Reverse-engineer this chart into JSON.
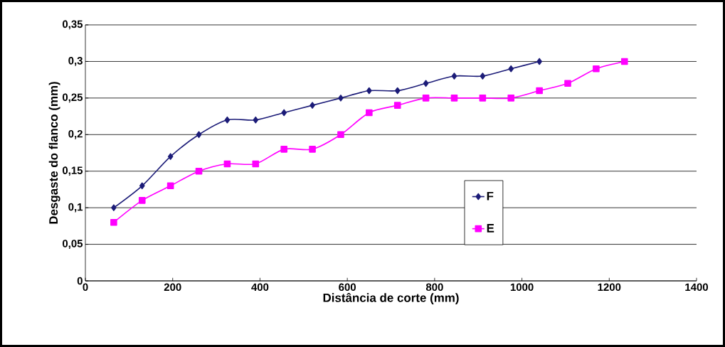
{
  "chart_data": {
    "type": "line",
    "xlabel": "Distância de corte (mm)",
    "ylabel": "Desgaste do flanco (mm)",
    "xlim": [
      0,
      1400
    ],
    "xticks": [
      0,
      200,
      400,
      600,
      800,
      1000,
      1200,
      1400
    ],
    "ylim": [
      0,
      0.35
    ],
    "yticks": [
      0,
      {
        "value": 0.05,
        "label": "0,05"
      },
      {
        "value": 0.1,
        "label": "0,1"
      },
      {
        "value": 0.15,
        "label": "0,15"
      },
      {
        "value": 0.2,
        "label": "0,2"
      },
      {
        "value": 0.25,
        "label": "0,25"
      },
      {
        "value": 0.3,
        "label": "0,3"
      },
      {
        "value": 0.35,
        "label": "0,35"
      }
    ],
    "grid": "y",
    "legend": "right",
    "series": [
      {
        "name": "F",
        "color": "#1c1c78",
        "marker": "diamond",
        "x": [
          65,
          130,
          195,
          260,
          325,
          390,
          455,
          520,
          585,
          650,
          715,
          780,
          845,
          910,
          975,
          1040
        ],
        "values": [
          0.1,
          0.13,
          0.17,
          0.2,
          0.22,
          0.22,
          0.23,
          0.24,
          0.25,
          0.26,
          0.26,
          0.27,
          0.28,
          0.28,
          0.29,
          0.3
        ]
      },
      {
        "name": "E",
        "color": "#ff00ff",
        "marker": "square",
        "x": [
          65,
          130,
          195,
          260,
          325,
          390,
          455,
          520,
          585,
          650,
          715,
          780,
          845,
          910,
          975,
          1040,
          1105,
          1170,
          1235
        ],
        "values": [
          0.08,
          0.11,
          0.13,
          0.15,
          0.16,
          0.16,
          0.18,
          0.18,
          0.2,
          0.23,
          0.24,
          0.25,
          0.25,
          0.25,
          0.25,
          0.26,
          0.27,
          0.29,
          0.3
        ]
      }
    ]
  }
}
